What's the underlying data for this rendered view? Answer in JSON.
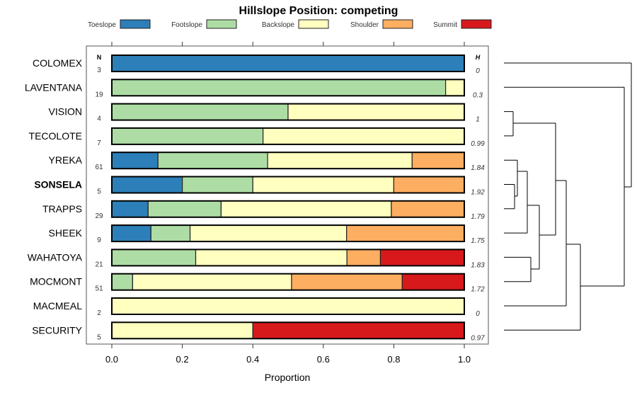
{
  "chart_data": {
    "type": "bar",
    "orientation": "horizontal-stacked",
    "title": "Hillslope Position: competing",
    "xlabel": "Proportion",
    "xlim": [
      0,
      1
    ],
    "xticks": [
      "0.0",
      "0.2",
      "0.4",
      "0.6",
      "0.8",
      "1.0"
    ],
    "n_header": "N",
    "h_header": "H",
    "legend_position": "top",
    "series": [
      {
        "name": "Toeslope",
        "color": "#2C7FB8"
      },
      {
        "name": "Footslope",
        "color": "#ADDDA4"
      },
      {
        "name": "Backslope",
        "color": "#FFFFBF"
      },
      {
        "name": "Shoulder",
        "color": "#FDAE61"
      },
      {
        "name": "Summit",
        "color": "#D7191C"
      }
    ],
    "categories": [
      "COLOMEX",
      "LAVENTANA",
      "VISION",
      "TECOLOTE",
      "YREKA",
      "SONSELA",
      "TRAPPS",
      "SHEEK",
      "WAHATOYA",
      "MOCMONT",
      "MACMEAL",
      "SECURITY"
    ],
    "highlighted": "SONSELA",
    "n": [
      "3",
      "19",
      "4",
      "7",
      "61",
      "5",
      "29",
      "9",
      "21",
      "51",
      "2",
      "5"
    ],
    "h": [
      "0",
      "0.3",
      "1",
      "0.99",
      "1.84",
      "1.92",
      "1.79",
      "1.75",
      "1.83",
      "1.72",
      "0",
      "0.97"
    ],
    "values": [
      [
        1,
        0,
        0,
        0,
        0
      ],
      [
        0,
        0.947,
        0.053,
        0,
        0
      ],
      [
        0,
        0.5,
        0.5,
        0,
        0
      ],
      [
        0,
        0.429,
        0.571,
        0,
        0
      ],
      [
        0.131,
        0.311,
        0.41,
        0.148,
        0
      ],
      [
        0.2,
        0.2,
        0.4,
        0.2,
        0
      ],
      [
        0.103,
        0.207,
        0.483,
        0.207,
        0
      ],
      [
        0.111,
        0.111,
        0.444,
        0.333,
        0
      ],
      [
        0,
        0.238,
        0.429,
        0.095,
        0.238
      ],
      [
        0,
        0.059,
        0.451,
        0.314,
        0.176
      ],
      [
        0,
        0,
        1,
        0,
        0
      ],
      [
        0,
        0,
        0.4,
        0,
        0.6
      ]
    ]
  }
}
